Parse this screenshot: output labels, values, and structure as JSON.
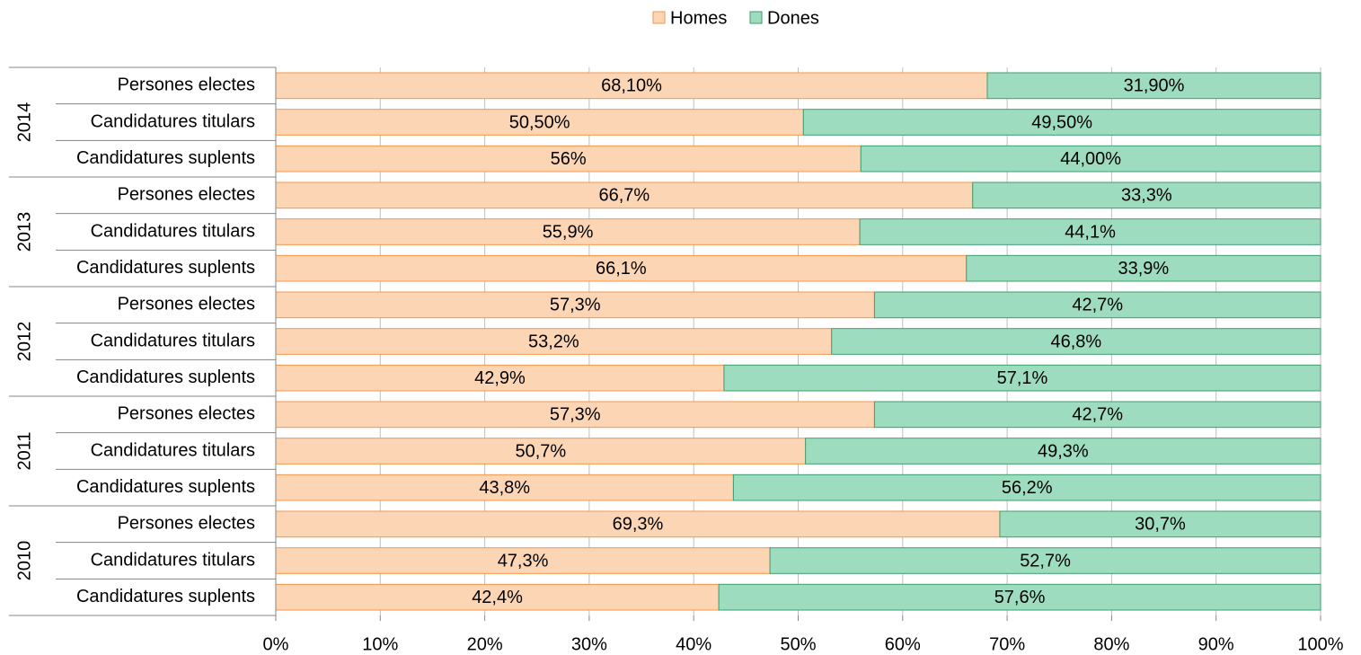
{
  "chart_data": {
    "type": "stacked_barh",
    "groups": [
      "2014",
      "2013",
      "2012",
      "2011",
      "2010"
    ],
    "categories": [
      "Persones electes",
      "Candidatures titulars",
      "Candidatures suplents",
      "Persones electes",
      "Candidatures titulars",
      "Candidatures suplents",
      "Persones electes",
      "Candidatures titulars",
      "Candidatures suplents",
      "Persones electes",
      "Candidatures titulars",
      "Candidatures suplents",
      "Persones electes",
      "Candidatures titulars",
      "Candidatures suplents"
    ],
    "series": [
      {
        "name": "Homes",
        "color": "#fcd5b5",
        "edge": "#f79646",
        "values": [
          68.1,
          50.5,
          56,
          66.7,
          55.9,
          66.1,
          57.3,
          53.2,
          42.9,
          57.3,
          50.7,
          43.8,
          69.3,
          47.3,
          42.4
        ],
        "value_labels": [
          "68,10%",
          "50,50%",
          "56%",
          "66,7%",
          "55,9%",
          "66,1%",
          "57,3%",
          "53,2%",
          "42,9%",
          "57,3%",
          "50,7%",
          "43,8%",
          "69,3%",
          "47,3%",
          "42,4%"
        ]
      },
      {
        "name": "Dones",
        "color": "#9ddcbf",
        "edge": "#3f9e6f",
        "values": [
          31.9,
          49.5,
          44.0,
          33.3,
          44.1,
          33.9,
          42.7,
          46.8,
          57.1,
          42.7,
          49.3,
          56.2,
          30.7,
          52.7,
          57.6
        ],
        "value_labels": [
          "31,90%",
          "49,50%",
          "44,00%",
          "33,3%",
          "44,1%",
          "33,9%",
          "42,7%",
          "46,8%",
          "57,1%",
          "42,7%",
          "49,3%",
          "56,2%",
          "30,7%",
          "52,7%",
          "57,6%"
        ]
      }
    ],
    "xlim": [
      0,
      100
    ],
    "xticks": [
      {
        "value": 0,
        "label": "0%"
      },
      {
        "value": 10,
        "label": "10%"
      },
      {
        "value": 20,
        "label": "20%"
      },
      {
        "value": 30,
        "label": "30%"
      },
      {
        "value": 40,
        "label": "40%"
      },
      {
        "value": 50,
        "label": "50%"
      },
      {
        "value": 60,
        "label": "60%"
      },
      {
        "value": 70,
        "label": "70%"
      },
      {
        "value": 80,
        "label": "80%"
      },
      {
        "value": 90,
        "label": "90%"
      },
      {
        "value": 100,
        "label": "100%"
      }
    ],
    "grid": true,
    "legend": "top"
  }
}
